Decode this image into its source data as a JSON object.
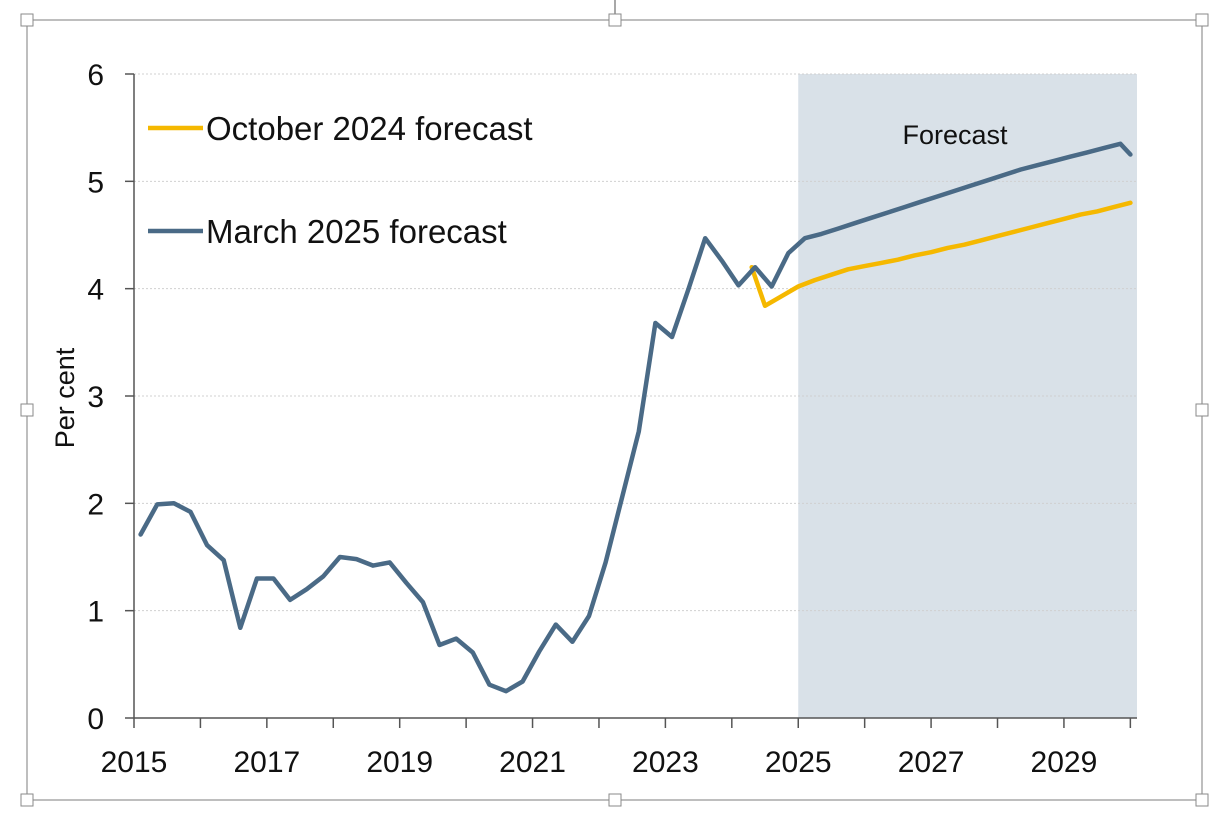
{
  "chart_data": {
    "type": "line",
    "ylabel": "Per cent",
    "ylim": [
      0,
      6
    ],
    "xlim": [
      2015,
      2030.1
    ],
    "x_ticks": [
      "2015",
      "2017",
      "2019",
      "2021",
      "2023",
      "2025",
      "2027",
      "2029"
    ],
    "y_ticks": [
      "0",
      "1",
      "2",
      "3",
      "4",
      "5",
      "6"
    ],
    "forecast_region": {
      "label": "Forecast",
      "start": 2025,
      "end": 2030.1
    },
    "legend_placement": "top-left",
    "colors": {
      "october": "#f5b800",
      "march": "#4a6a86",
      "shade": "#d9e1e8",
      "grid": "#d0d0d0",
      "axis": "#555555"
    },
    "series": [
      {
        "name": "October 2024 forecast",
        "color_key": "october",
        "points": [
          [
            2024.3,
            4.2
          ],
          [
            2024.5,
            3.84
          ],
          [
            2024.75,
            3.93
          ],
          [
            2025.0,
            4.02
          ],
          [
            2025.25,
            4.08
          ],
          [
            2025.5,
            4.13
          ],
          [
            2025.75,
            4.18
          ],
          [
            2026.0,
            4.21
          ],
          [
            2026.25,
            4.24
          ],
          [
            2026.5,
            4.27
          ],
          [
            2026.75,
            4.31
          ],
          [
            2027.0,
            4.34
          ],
          [
            2027.25,
            4.38
          ],
          [
            2027.5,
            4.41
          ],
          [
            2027.75,
            4.45
          ],
          [
            2028.0,
            4.49
          ],
          [
            2028.25,
            4.53
          ],
          [
            2028.5,
            4.57
          ],
          [
            2028.75,
            4.61
          ],
          [
            2029.0,
            4.65
          ],
          [
            2029.25,
            4.69
          ],
          [
            2029.5,
            4.72
          ],
          [
            2029.75,
            4.76
          ],
          [
            2030.0,
            4.8
          ]
        ]
      },
      {
        "name": "March 2025 forecast",
        "color_key": "march",
        "points": [
          [
            2015.1,
            1.71
          ],
          [
            2015.35,
            1.99
          ],
          [
            2015.6,
            2.0
          ],
          [
            2015.85,
            1.92
          ],
          [
            2016.1,
            1.61
          ],
          [
            2016.35,
            1.47
          ],
          [
            2016.6,
            0.84
          ],
          [
            2016.85,
            1.3
          ],
          [
            2017.1,
            1.3
          ],
          [
            2017.35,
            1.1
          ],
          [
            2017.6,
            1.2
          ],
          [
            2017.85,
            1.32
          ],
          [
            2018.1,
            1.5
          ],
          [
            2018.35,
            1.48
          ],
          [
            2018.6,
            1.42
          ],
          [
            2018.85,
            1.45
          ],
          [
            2019.1,
            1.26
          ],
          [
            2019.35,
            1.08
          ],
          [
            2019.6,
            0.68
          ],
          [
            2019.85,
            0.74
          ],
          [
            2020.1,
            0.61
          ],
          [
            2020.35,
            0.31
          ],
          [
            2020.6,
            0.25
          ],
          [
            2020.85,
            0.34
          ],
          [
            2021.1,
            0.62
          ],
          [
            2021.35,
            0.87
          ],
          [
            2021.6,
            0.71
          ],
          [
            2021.85,
            0.95
          ],
          [
            2022.1,
            1.45
          ],
          [
            2022.35,
            2.06
          ],
          [
            2022.6,
            2.67
          ],
          [
            2022.85,
            3.68
          ],
          [
            2023.1,
            3.55
          ],
          [
            2023.35,
            4.0
          ],
          [
            2023.6,
            4.47
          ],
          [
            2023.85,
            4.26
          ],
          [
            2024.1,
            4.03
          ],
          [
            2024.35,
            4.2
          ],
          [
            2024.6,
            4.02
          ],
          [
            2024.85,
            4.33
          ],
          [
            2025.1,
            4.47
          ],
          [
            2025.35,
            4.51
          ],
          [
            2025.6,
            4.56
          ],
          [
            2025.85,
            4.61
          ],
          [
            2026.1,
            4.66
          ],
          [
            2026.35,
            4.71
          ],
          [
            2026.6,
            4.76
          ],
          [
            2026.85,
            4.81
          ],
          [
            2027.1,
            4.86
          ],
          [
            2027.35,
            4.91
          ],
          [
            2027.6,
            4.96
          ],
          [
            2027.85,
            5.01
          ],
          [
            2028.1,
            5.06
          ],
          [
            2028.35,
            5.11
          ],
          [
            2028.6,
            5.15
          ],
          [
            2028.85,
            5.19
          ],
          [
            2029.1,
            5.23
          ],
          [
            2029.35,
            5.27
          ],
          [
            2029.6,
            5.31
          ],
          [
            2029.85,
            5.35
          ],
          [
            2030.0,
            5.25
          ]
        ]
      }
    ]
  }
}
